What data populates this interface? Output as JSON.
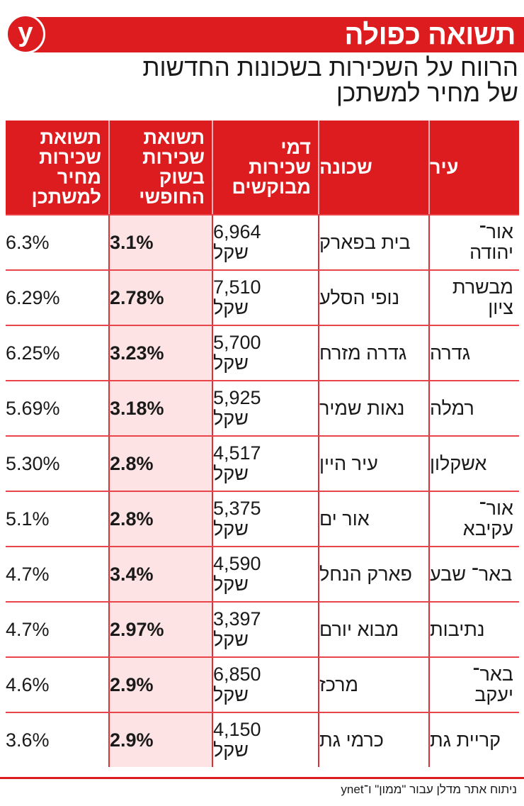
{
  "header": {
    "logo_letter": "y",
    "title": "תשואה כפולה",
    "subtitle_line1": "הרווח על השכירות בשכונות החדשות",
    "subtitle_line2": "של מחיר למשתכן"
  },
  "colors": {
    "brand_red": "#dc1c1e",
    "highlight_pink": "#fde3e4",
    "grid_red": "#d8323a"
  },
  "table": {
    "columns": [
      {
        "key": "city",
        "label": "עיר"
      },
      {
        "key": "neighborhood",
        "label": "שכונה"
      },
      {
        "key": "rent",
        "label": "דמי שכירות מבוקשים"
      },
      {
        "key": "free_market_yield",
        "label": "תשואת שכירות בשוק החופשי"
      },
      {
        "key": "target_price_yield",
        "label": "תשואת שכירות מחיר למשתכן"
      }
    ],
    "currency_label": "שקל",
    "rows": [
      {
        "city": "אור־ יהודה",
        "neighborhood": "בית בפארק",
        "rent": "6,964",
        "free_market_yield": "3.1%",
        "target_price_yield": "6.3%"
      },
      {
        "city": "מבשרת ציון",
        "neighborhood": "נופי הסלע",
        "rent": "7,510",
        "free_market_yield": "2.78%",
        "target_price_yield": "6.29%"
      },
      {
        "city": "גדרה",
        "neighborhood": "גדרה מזרח",
        "rent": "5,700",
        "free_market_yield": "3.23%",
        "target_price_yield": "6.25%"
      },
      {
        "city": "רמלה",
        "neighborhood": "נאות שמיר",
        "rent": "5,925",
        "free_market_yield": "3.18%",
        "target_price_yield": "5.69%"
      },
      {
        "city": "אשקלון",
        "neighborhood": "עיר היין",
        "rent": "4,517",
        "free_market_yield": "2.8%",
        "target_price_yield": "5.30%"
      },
      {
        "city": "אור־ עקיבא",
        "neighborhood": "אור ים",
        "rent": "5,375",
        "free_market_yield": "2.8%",
        "target_price_yield": "5.1%"
      },
      {
        "city": "באר־ שבע",
        "neighborhood": "פארק הנחל",
        "rent": "4,590",
        "free_market_yield": "3.4%",
        "target_price_yield": "4.7%"
      },
      {
        "city": "נתיבות",
        "neighborhood": "מבוא יורם",
        "rent": "3,397",
        "free_market_yield": "2.97%",
        "target_price_yield": "4.7%"
      },
      {
        "city": "באר־ יעקב",
        "neighborhood": "מרכז",
        "rent": "6,850",
        "free_market_yield": "2.9%",
        "target_price_yield": "4.6%"
      },
      {
        "city": "קריית גת",
        "neighborhood": "כרמי גת",
        "rent": "4,150",
        "free_market_yield": "2.9%",
        "target_price_yield": "3.6%"
      }
    ]
  },
  "footer": {
    "source": "ניתוח אתר מדלן עבור \"ממון\" ו־ynet"
  },
  "chart_data": {
    "type": "table",
    "title": "תשואה כפולה",
    "subtitle": "הרווח על השכירות בשכונות החדשות של מחיר למשתכן",
    "columns": [
      "עיר",
      "שכונה",
      "דמי שכירות מבוקשים (שקל)",
      "תשואת שכירות בשוק החופשי (%)",
      "תשואת שכירות מחיר למשתכן (%)"
    ],
    "rows": [
      [
        "אור־יהודה",
        "בית בפארק",
        6964,
        3.1,
        6.3
      ],
      [
        "מבשרת ציון",
        "נופי הסלע",
        7510,
        2.78,
        6.29
      ],
      [
        "גדרה",
        "גדרה מזרח",
        5700,
        3.23,
        6.25
      ],
      [
        "רמלה",
        "נאות שמיר",
        5925,
        3.18,
        5.69
      ],
      [
        "אשקלון",
        "עיר היין",
        4517,
        2.8,
        5.3
      ],
      [
        "אור־עקיבא",
        "אור ים",
        5375,
        2.8,
        5.1
      ],
      [
        "באר־שבע",
        "פארק הנחל",
        4590,
        3.4,
        4.7
      ],
      [
        "נתיבות",
        "מבוא יורם",
        3397,
        2.97,
        4.7
      ],
      [
        "באר־יעקב",
        "מרכז",
        6850,
        2.9,
        4.6
      ],
      [
        "קריית גת",
        "כרמי גת",
        4150,
        2.9,
        3.6
      ]
    ],
    "source": "ניתוח אתר מדלן עבור \"ממון\" ו־ynet"
  }
}
